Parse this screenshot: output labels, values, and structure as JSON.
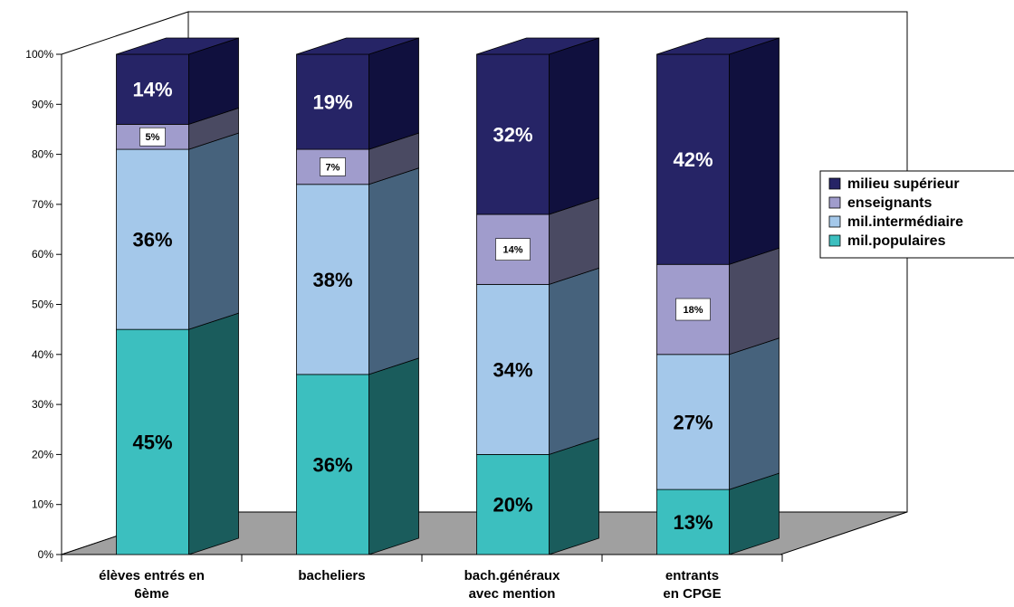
{
  "chart_data": {
    "type": "bar",
    "stacked": true,
    "three_d": true,
    "percent_axis": true,
    "ylim": [
      0,
      100
    ],
    "yticks": [
      "0%",
      "10%",
      "20%",
      "30%",
      "40%",
      "50%",
      "60%",
      "70%",
      "80%",
      "90%",
      "100%"
    ],
    "categories": [
      [
        "élèves entrés en",
        "6ème"
      ],
      [
        "bacheliers"
      ],
      [
        "bach.généraux",
        "avec mention"
      ],
      [
        "entrants",
        "en CPGE"
      ]
    ],
    "series": [
      {
        "name": "mil.populaires",
        "values": [
          45,
          36,
          20,
          13
        ],
        "labels": [
          "45%",
          "36%",
          "20%",
          "13%"
        ],
        "color": "#3cbfbf",
        "side_color": "#1a5c5c",
        "label_style": "plain"
      },
      {
        "name": "mil.intermédiaire",
        "values": [
          36,
          38,
          34,
          27
        ],
        "labels": [
          "36%",
          "38%",
          "34%",
          "27%"
        ],
        "color": "#a4c8ea",
        "side_color": "#46627c",
        "label_style": "plain"
      },
      {
        "name": "enseignants",
        "values": [
          5,
          7,
          14,
          18
        ],
        "labels": [
          "5%",
          "7%",
          "14%",
          "18%"
        ],
        "color": "#a09ccc",
        "side_color": "#4a4a62",
        "label_style": "boxed"
      },
      {
        "name": "milieu supérieur",
        "values": [
          14,
          19,
          32,
          42
        ],
        "labels": [
          "14%",
          "19%",
          "32%",
          "42%"
        ],
        "color": "#262466",
        "side_color": "#10103e",
        "label_style": "light"
      }
    ],
    "legend": {
      "position": "right",
      "entries": [
        "milieu supérieur",
        "enseignants",
        "mil.intermédiaire",
        "mil.populaires"
      ]
    },
    "floor_color": "#a0a0a0",
    "grid": false
  }
}
